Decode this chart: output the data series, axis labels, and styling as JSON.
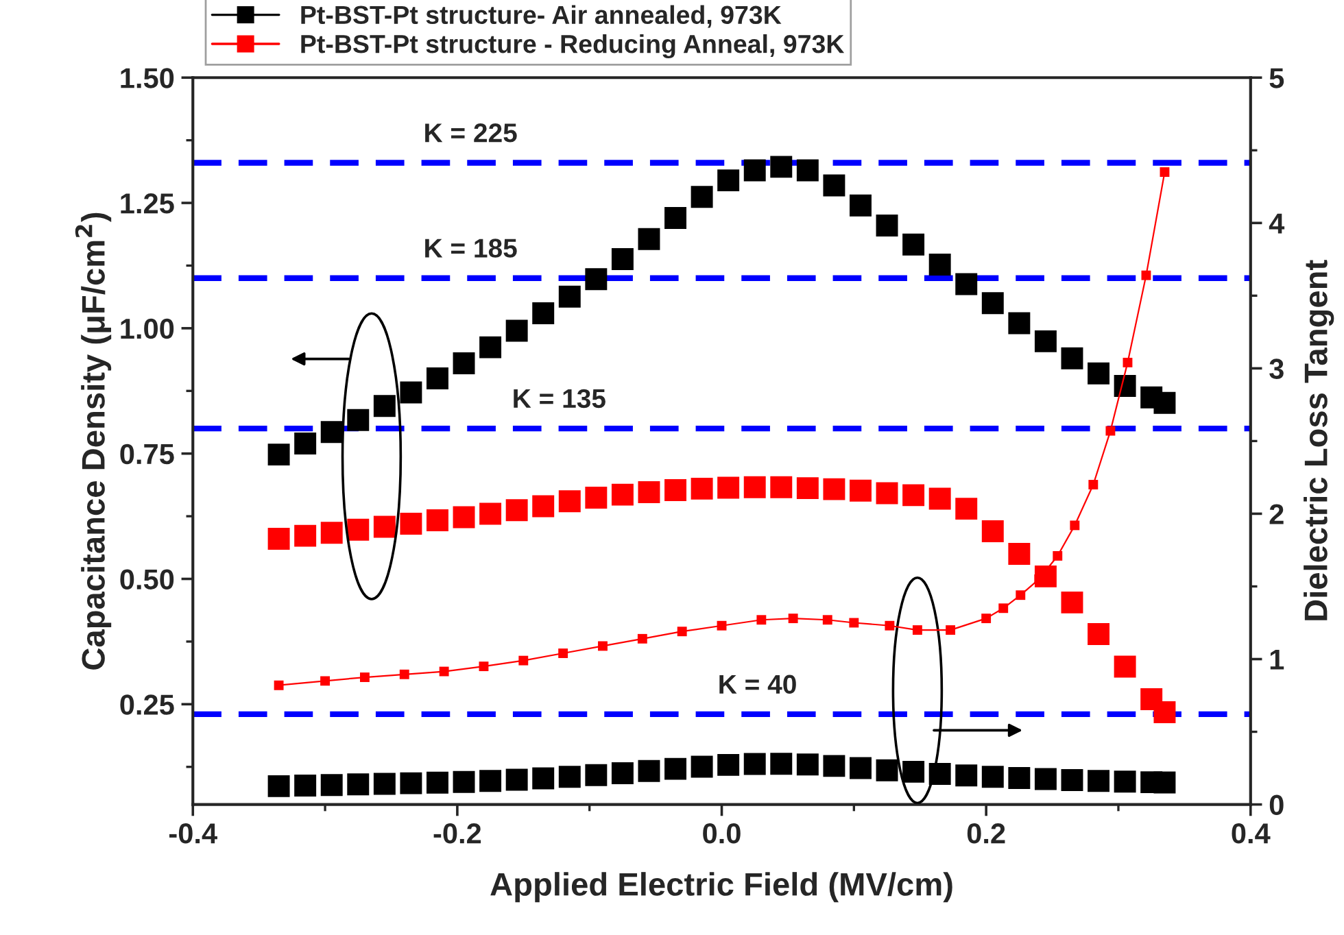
{
  "chart_data": {
    "type": "scatter",
    "xlabel": "Applied Electric Field (MV/cm)",
    "ylabel": "Capacitance Density (μF/cm$^{2}$)",
    "y2label": "Dielectric Loss Tangent",
    "xlim": [
      -0.4,
      0.4
    ],
    "xticks": [
      -0.4,
      -0.2,
      {
        "value": 0.0,
        "label": "0.0"
      },
      0.2,
      0.4
    ],
    "ylim": [
      0.05,
      1.5
    ],
    "yticks": [
      {
        "value": 0.25,
        "label": "0.25"
      },
      {
        "value": 0.5,
        "label": "0.50"
      },
      {
        "value": 0.75,
        "label": "0.75"
      },
      {
        "value": 1.0,
        "label": "1.00"
      },
      {
        "value": 1.25,
        "label": "1.25"
      },
      {
        "value": 1.5,
        "label": "1.50"
      }
    ],
    "y2lim": [
      0,
      5
    ],
    "y2ticks": [
      0,
      1,
      2,
      3,
      4,
      5
    ],
    "marker": "square",
    "grid": false,
    "legend": "top",
    "series": [
      {
        "name": "Pt-BST-Pt structure- Air annealed, 973K",
        "color": "#000000",
        "x": [
          -0.335,
          -0.315,
          -0.295,
          -0.275,
          -0.255,
          -0.235,
          -0.215,
          -0.195,
          -0.175,
          -0.155,
          -0.135,
          -0.115,
          -0.095,
          -0.075,
          -0.055,
          -0.035,
          -0.015,
          0.005,
          0.025,
          0.045,
          0.065,
          0.085,
          0.105,
          0.125,
          0.145,
          0.165,
          0.185,
          0.205,
          0.225,
          0.245,
          0.265,
          0.285,
          0.305,
          0.325,
          0.335
        ],
        "values": [
          0.748,
          0.77,
          0.793,
          0.817,
          0.845,
          0.872,
          0.9,
          0.93,
          0.962,
          0.995,
          1.03,
          1.063,
          1.098,
          1.138,
          1.178,
          1.22,
          1.262,
          1.295,
          1.315,
          1.322,
          1.315,
          1.285,
          1.245,
          1.205,
          1.167,
          1.127,
          1.088,
          1.05,
          1.01,
          0.974,
          0.94,
          0.91,
          0.885,
          0.862,
          0.851
        ]
      },
      {
        "name": "Pt-BST-Pt structure - Reducing Anneal, 973K",
        "color": "#ff0000",
        "x": [
          -0.335,
          -0.315,
          -0.295,
          -0.275,
          -0.255,
          -0.235,
          -0.215,
          -0.195,
          -0.175,
          -0.155,
          -0.135,
          -0.115,
          -0.095,
          -0.075,
          -0.055,
          -0.035,
          -0.015,
          0.005,
          0.025,
          0.045,
          0.065,
          0.085,
          0.105,
          0.125,
          0.145,
          0.165,
          0.185,
          0.205,
          0.225,
          0.245,
          0.265,
          0.285,
          0.305,
          0.325,
          0.335
        ],
        "values": [
          0.58,
          0.586,
          0.592,
          0.598,
          0.604,
          0.61,
          0.617,
          0.623,
          0.63,
          0.637,
          0.645,
          0.655,
          0.662,
          0.668,
          0.673,
          0.677,
          0.68,
          0.682,
          0.683,
          0.683,
          0.681,
          0.679,
          0.676,
          0.671,
          0.667,
          0.66,
          0.64,
          0.595,
          0.55,
          0.505,
          0.453,
          0.39,
          0.325,
          0.26,
          0.234
        ]
      },
      {
        "color": "#ff0000",
        "axis": "y2",
        "type": "line",
        "x": [
          -0.335,
          -0.3,
          -0.27,
          -0.24,
          -0.21,
          -0.18,
          -0.15,
          -0.12,
          -0.09,
          -0.06,
          -0.03,
          0.0,
          0.03,
          0.054,
          0.08,
          0.1,
          0.127,
          0.148,
          0.173,
          0.2,
          0.213,
          0.226,
          0.24,
          0.254,
          0.267,
          0.281,
          0.294,
          0.307,
          0.321,
          0.335
        ],
        "values": [
          0.82,
          0.85,
          0.875,
          0.895,
          0.915,
          0.95,
          0.99,
          1.04,
          1.09,
          1.14,
          1.19,
          1.23,
          1.27,
          1.28,
          1.27,
          1.25,
          1.23,
          1.2,
          1.2,
          1.28,
          1.35,
          1.44,
          1.55,
          1.71,
          1.92,
          2.2,
          2.57,
          3.04,
          3.64,
          4.35
        ]
      },
      {
        "color": "#000000",
        "axis": "y2",
        "x": [
          -0.335,
          -0.315,
          -0.295,
          -0.275,
          -0.255,
          -0.235,
          -0.215,
          -0.195,
          -0.175,
          -0.155,
          -0.135,
          -0.115,
          -0.095,
          -0.075,
          -0.055,
          -0.035,
          -0.015,
          0.005,
          0.025,
          0.045,
          0.065,
          0.085,
          0.105,
          0.125,
          0.145,
          0.165,
          0.185,
          0.205,
          0.225,
          0.245,
          0.265,
          0.285,
          0.305,
          0.325,
          0.335
        ],
        "values": [
          0.126,
          0.13,
          0.134,
          0.138,
          0.142,
          0.146,
          0.15,
          0.155,
          0.162,
          0.17,
          0.18,
          0.19,
          0.202,
          0.215,
          0.23,
          0.245,
          0.26,
          0.272,
          0.279,
          0.28,
          0.275,
          0.265,
          0.25,
          0.235,
          0.225,
          0.21,
          0.2,
          0.19,
          0.182,
          0.175,
          0.168,
          0.162,
          0.157,
          0.153,
          0.151
        ]
      }
    ],
    "ref_lines": [
      {
        "axis": "y",
        "value": 1.33,
        "color": "#0000ff",
        "line_style": "dashed"
      },
      {
        "axis": "y",
        "value": 1.1,
        "color": "#0000ff",
        "line_style": "dashed"
      },
      {
        "axis": "y",
        "value": 0.8,
        "color": "#0000ff",
        "line_style": "dashed"
      },
      {
        "axis": "y",
        "value": 0.23,
        "color": "#0000ff",
        "line_style": "dashed"
      }
    ],
    "annotations": [
      {
        "text": "K = 225",
        "x": -0.19,
        "y": 1.33
      },
      {
        "text": "K = 185",
        "x": -0.19,
        "y": 1.1
      },
      {
        "text": "K = 135",
        "x": -0.123,
        "y": 0.8
      },
      {
        "text": "K = 40",
        "x": 0.027,
        "y": 0.23
      }
    ]
  }
}
